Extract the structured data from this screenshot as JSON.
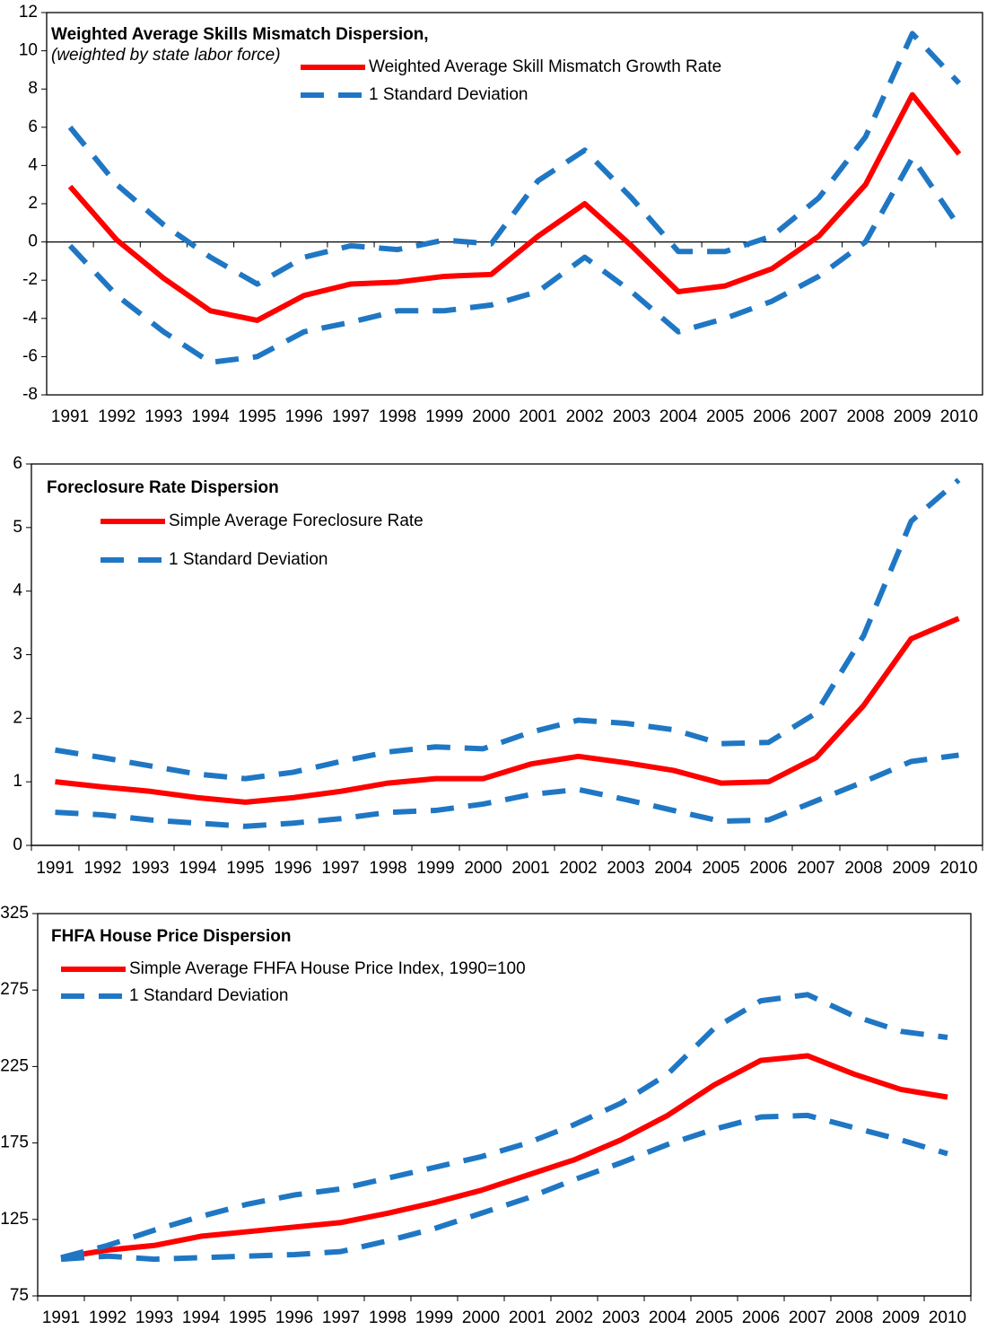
{
  "chart_data": [
    {
      "type": "line",
      "title": "Weighted Average Skills Mismatch Dispersion,",
      "subtitle": "(weighted by state labor force)",
      "categories": [
        "1991",
        "1992",
        "1993",
        "1994",
        "1995",
        "1996",
        "1997",
        "1998",
        "1999",
        "2000",
        "2001",
        "2002",
        "2003",
        "2004",
        "2005",
        "2006",
        "2007",
        "2008",
        "2009",
        "2010"
      ],
      "series": [
        {
          "name": "Weighted Average Skill Mismatch Growth Rate",
          "color": "#ff0000",
          "line_style": "solid",
          "values": [
            2.9,
            0.1,
            -1.9,
            -3.6,
            -4.1,
            -2.8,
            -2.2,
            -2.1,
            -1.8,
            -1.7,
            0.3,
            2.0,
            -0.2,
            -2.6,
            -2.3,
            -1.4,
            0.3,
            3.0,
            7.7,
            4.6
          ]
        },
        {
          "name": "1 Standard Deviation",
          "color": "#1f77c4",
          "line_style": "dashed",
          "values": [
            6.0,
            3.0,
            0.9,
            -0.8,
            -2.2,
            -0.8,
            -0.2,
            -0.4,
            0.1,
            -0.1,
            3.2,
            4.8,
            2.3,
            -0.5,
            -0.5,
            0.3,
            2.3,
            5.5,
            10.9,
            8.3
          ]
        },
        {
          "color": "#1f77c4",
          "line_style": "dashed",
          "values": [
            -0.2,
            -2.8,
            -4.7,
            -6.3,
            -6.0,
            -4.7,
            -4.2,
            -3.6,
            -3.6,
            -3.3,
            -2.6,
            -0.8,
            -2.6,
            -4.7,
            -4.0,
            -3.1,
            -1.8,
            0.0,
            4.4,
            0.8
          ]
        }
      ],
      "ylim": [
        -8,
        12
      ],
      "yticks": [
        -8,
        -6,
        -4,
        -2,
        0,
        2,
        4,
        6,
        8,
        10,
        12
      ]
    },
    {
      "type": "line",
      "title": "Foreclosure Rate Dispersion",
      "categories": [
        "1991",
        "1992",
        "1993",
        "1994",
        "1995",
        "1996",
        "1997",
        "1998",
        "1999",
        "2000",
        "2001",
        "2002",
        "2003",
        "2004",
        "2005",
        "2006",
        "2007",
        "2008",
        "2009",
        "2010"
      ],
      "series": [
        {
          "name": "Simple Average Foreclosure Rate",
          "color": "#ff0000",
          "line_style": "solid",
          "values": [
            1.0,
            0.92,
            0.85,
            0.75,
            0.68,
            0.75,
            0.85,
            0.98,
            1.05,
            1.05,
            1.28,
            1.4,
            1.3,
            1.18,
            0.98,
            1.0,
            1.38,
            2.2,
            3.25,
            3.57
          ]
        },
        {
          "name": "1 Standard Deviation",
          "color": "#1f77c4",
          "line_style": "dashed",
          "values": [
            1.5,
            1.38,
            1.25,
            1.12,
            1.05,
            1.15,
            1.32,
            1.47,
            1.55,
            1.52,
            1.78,
            1.97,
            1.92,
            1.82,
            1.6,
            1.62,
            2.08,
            3.3,
            5.1,
            5.75
          ]
        },
        {
          "color": "#1f77c4",
          "line_style": "dashed",
          "values": [
            0.52,
            0.48,
            0.4,
            0.35,
            0.3,
            0.35,
            0.42,
            0.52,
            0.55,
            0.65,
            0.8,
            0.88,
            0.72,
            0.55,
            0.38,
            0.4,
            0.7,
            1.0,
            1.32,
            1.42
          ]
        }
      ],
      "ylim": [
        0,
        6
      ],
      "yticks": [
        0,
        1,
        2,
        3,
        4,
        5,
        6
      ]
    },
    {
      "type": "line",
      "title": "FHFA House Price Dispersion",
      "categories": [
        "1991",
        "1992",
        "1993",
        "1994",
        "1995",
        "1996",
        "1997",
        "1998",
        "1999",
        "2000",
        "2001",
        "2002",
        "2003",
        "2004",
        "2005",
        "2006",
        "2007",
        "2008",
        "2009",
        "2010"
      ],
      "series": [
        {
          "name": "Simple Average FHFA House Price Index, 1990=100",
          "color": "#ff0000",
          "line_style": "solid",
          "values": [
            100,
            105,
            108,
            114,
            117,
            120,
            123,
            129,
            136,
            144,
            154,
            164,
            177,
            193,
            213,
            229,
            232,
            220,
            210,
            205
          ]
        },
        {
          "name": "1 Standard Deviation",
          "color": "#1f77c4",
          "line_style": "dashed",
          "values": [
            100,
            108,
            118,
            127,
            135,
            141,
            145,
            152,
            159,
            166,
            175,
            187,
            201,
            220,
            250,
            268,
            272,
            258,
            248,
            244
          ]
        },
        {
          "color": "#1f77c4",
          "line_style": "dashed",
          "values": [
            99,
            101,
            99,
            100,
            101,
            102,
            104,
            111,
            119,
            129,
            139,
            151,
            162,
            174,
            184,
            192,
            193,
            185,
            177,
            168
          ]
        }
      ],
      "ylim": [
        75,
        325
      ],
      "yticks": [
        75,
        125,
        175,
        225,
        275,
        325
      ]
    }
  ]
}
